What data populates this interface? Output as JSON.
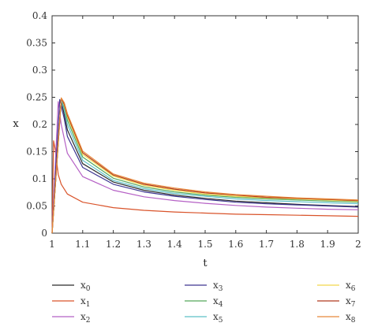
{
  "chart_data": {
    "type": "line",
    "xlabel": "t",
    "ylabel": "x",
    "xlim": [
      1,
      2
    ],
    "ylim": [
      0,
      0.4
    ],
    "xticks": [
      1,
      1.1,
      1.2,
      1.3,
      1.4,
      1.5,
      1.6,
      1.7,
      1.8,
      1.9,
      2
    ],
    "yticks": [
      0,
      0.05,
      0.1,
      0.15,
      0.2,
      0.25,
      0.3,
      0.35,
      0.4
    ],
    "grid": false,
    "legend_position": "bottom",
    "series": [
      {
        "name": "x",
        "sub": "0",
        "color": "#2b2b2b",
        "x": [
          1,
          1.03,
          1.05,
          1.1,
          1.2,
          1.3,
          1.4,
          1.5,
          1.6,
          1.7,
          1.8,
          1.9,
          2
        ],
        "y": [
          0,
          0.245,
          0.19,
          0.128,
          0.094,
          0.079,
          0.07,
          0.064,
          0.059,
          0.056,
          0.053,
          0.051,
          0.049
        ]
      },
      {
        "name": "x",
        "sub": "1",
        "color": "#d9532a",
        "x": [
          1,
          1.005,
          1.01,
          1.02,
          1.03,
          1.05,
          1.1,
          1.2,
          1.3,
          1.4,
          1.5,
          1.6,
          1.7,
          1.8,
          1.9,
          2
        ],
        "y": [
          0,
          0.17,
          0.155,
          0.108,
          0.09,
          0.072,
          0.057,
          0.047,
          0.042,
          0.039,
          0.037,
          0.035,
          0.034,
          0.033,
          0.032,
          0.031
        ]
      },
      {
        "name": "x",
        "sub": "2",
        "color": "#b560c5",
        "x": [
          1,
          1.02,
          1.03,
          1.05,
          1.1,
          1.2,
          1.3,
          1.4,
          1.5,
          1.6,
          1.7,
          1.8,
          1.9,
          2
        ],
        "y": [
          0,
          0.242,
          0.2,
          0.147,
          0.104,
          0.079,
          0.067,
          0.06,
          0.055,
          0.051,
          0.048,
          0.046,
          0.044,
          0.043
        ]
      },
      {
        "name": "x",
        "sub": "3",
        "color": "#3d3591",
        "x": [
          1,
          1.025,
          1.04,
          1.05,
          1.1,
          1.2,
          1.3,
          1.4,
          1.5,
          1.6,
          1.7,
          1.8,
          1.9,
          2
        ],
        "y": [
          0,
          0.246,
          0.21,
          0.178,
          0.121,
          0.09,
          0.076,
          0.068,
          0.062,
          0.057,
          0.054,
          0.052,
          0.05,
          0.048
        ]
      },
      {
        "name": "x",
        "sub": "4",
        "color": "#55a85a",
        "x": [
          1,
          1.03,
          1.04,
          1.05,
          1.1,
          1.2,
          1.3,
          1.4,
          1.5,
          1.6,
          1.7,
          1.8,
          1.9,
          2
        ],
        "y": [
          0,
          0.247,
          0.23,
          0.208,
          0.14,
          0.101,
          0.085,
          0.076,
          0.07,
          0.066,
          0.063,
          0.061,
          0.059,
          0.057
        ]
      },
      {
        "name": "x",
        "sub": "5",
        "color": "#5ec1c8",
        "x": [
          1,
          1.03,
          1.04,
          1.05,
          1.1,
          1.2,
          1.3,
          1.4,
          1.5,
          1.6,
          1.7,
          1.8,
          1.9,
          2
        ],
        "y": [
          0,
          0.247,
          0.226,
          0.2,
          0.134,
          0.097,
          0.082,
          0.073,
          0.068,
          0.063,
          0.06,
          0.058,
          0.056,
          0.054
        ]
      },
      {
        "name": "x",
        "sub": "6",
        "color": "#f2d84b",
        "x": [
          1,
          1.03,
          1.04,
          1.05,
          1.1,
          1.2,
          1.3,
          1.4,
          1.5,
          1.6,
          1.7,
          1.8,
          1.9,
          2
        ],
        "y": [
          0,
          0.248,
          0.235,
          0.214,
          0.145,
          0.105,
          0.088,
          0.079,
          0.072,
          0.068,
          0.065,
          0.063,
          0.061,
          0.059
        ]
      },
      {
        "name": "x",
        "sub": "7",
        "color": "#b0391f",
        "x": [
          1,
          1.03,
          1.04,
          1.05,
          1.1,
          1.2,
          1.3,
          1.4,
          1.5,
          1.6,
          1.7,
          1.8,
          1.9,
          2
        ],
        "y": [
          0,
          0.248,
          0.237,
          0.217,
          0.148,
          0.107,
          0.09,
          0.081,
          0.074,
          0.07,
          0.066,
          0.064,
          0.062,
          0.06
        ]
      },
      {
        "name": "x",
        "sub": "8",
        "color": "#e8893a",
        "x": [
          1,
          1.03,
          1.04,
          1.05,
          1.1,
          1.2,
          1.3,
          1.4,
          1.5,
          1.6,
          1.7,
          1.8,
          1.9,
          2
        ],
        "y": [
          0,
          0.249,
          0.24,
          0.22,
          0.151,
          0.109,
          0.092,
          0.083,
          0.076,
          0.071,
          0.068,
          0.065,
          0.063,
          0.061
        ]
      }
    ]
  }
}
